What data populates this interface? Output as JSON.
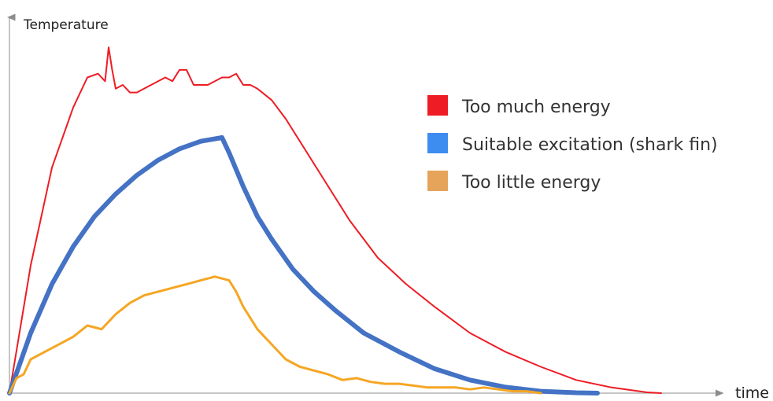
{
  "chart_data": {
    "type": "line",
    "xlabel": "time",
    "ylabel": "Temperature",
    "xlim": [
      0,
      100
    ],
    "ylim": [
      0,
      100
    ],
    "grid": false,
    "legend_position": "right",
    "series": [
      {
        "name": "Too much energy",
        "color": "#ee1c24",
        "x": [
          0,
          3,
          6,
          9,
          11,
          12.5,
          13.5,
          14,
          14.5,
          15,
          16,
          17,
          18,
          19,
          21,
          22,
          23,
          24,
          25,
          26,
          27,
          28,
          29,
          30,
          31,
          32,
          33,
          34,
          35,
          37,
          39,
          42,
          45,
          48,
          52,
          56,
          60,
          65,
          70,
          75,
          80,
          85,
          90,
          92
        ],
        "y": [
          0,
          34,
          60,
          76,
          84,
          85,
          83,
          92,
          86,
          81,
          82,
          80,
          80,
          81,
          83,
          84,
          83,
          86,
          86,
          82,
          82,
          82,
          83,
          84,
          84,
          85,
          82,
          82,
          81,
          78,
          73,
          64,
          55,
          46,
          36,
          29,
          23,
          16,
          11,
          7,
          3.5,
          1.5,
          0.2,
          0
        ]
      },
      {
        "name": "Suitable excitation (shark fin)",
        "color": "#4472c4",
        "x": [
          0,
          3,
          6,
          9,
          12,
          15,
          18,
          21,
          24,
          27,
          30,
          31,
          33,
          35,
          37,
          40,
          43,
          46,
          50,
          55,
          60,
          65,
          70,
          75,
          80,
          83
        ],
        "y": [
          0,
          16,
          29,
          39,
          47,
          53,
          58,
          62,
          65,
          67,
          68,
          64,
          55,
          47,
          41,
          33,
          27,
          22,
          16,
          11,
          6.5,
          3.5,
          1.6,
          0.5,
          0.1,
          0
        ]
      },
      {
        "name": "Too little energy",
        "color": "#f5a623",
        "x": [
          0,
          1,
          2,
          3,
          5,
          7,
          9,
          11,
          13,
          15,
          17,
          19,
          21,
          23,
          25,
          27,
          29,
          31,
          32,
          33,
          35,
          37,
          39,
          41,
          43,
          45,
          47,
          49,
          51,
          53,
          55,
          57,
          59,
          61,
          63,
          65,
          67,
          69,
          71,
          73,
          75
        ],
        "y": [
          0,
          4,
          5,
          9,
          11,
          13,
          15,
          18,
          17,
          21,
          24,
          26,
          27,
          28,
          29,
          30,
          31,
          30,
          27,
          23,
          17,
          13,
          9,
          7,
          6,
          5,
          3.5,
          4,
          3,
          2.5,
          2.5,
          2,
          1.5,
          1.5,
          1.5,
          1,
          1.5,
          1,
          0.5,
          0.5,
          0
        ]
      }
    ]
  },
  "colors": {
    "axis": "#b3b3b3",
    "text": "#222222"
  }
}
